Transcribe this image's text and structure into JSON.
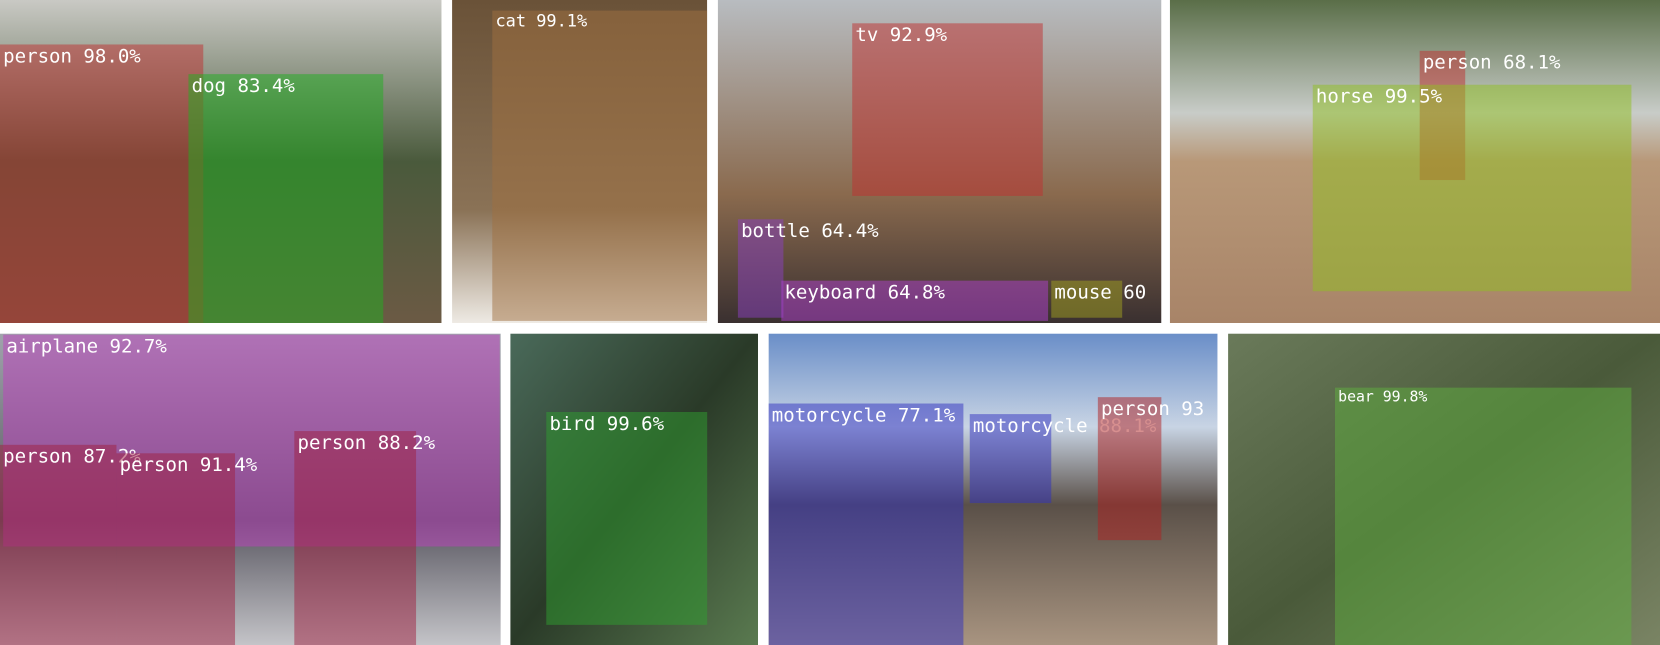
{
  "panels": [
    {
      "detections": [
        {
          "label": "person 98.0%"
        },
        {
          "label": "dog 83.4%"
        }
      ]
    },
    {
      "detections": [
        {
          "label": "cat 99.1%"
        }
      ]
    },
    {
      "detections": [
        {
          "label": "tv 92.9%"
        },
        {
          "label": "bottle 64.4%"
        },
        {
          "label": "keyboard 64.8%"
        },
        {
          "label": "mouse 60"
        }
      ]
    },
    {
      "detections": [
        {
          "label": "person 68.1%"
        },
        {
          "label": "horse 99.5%"
        }
      ]
    },
    {
      "detections": [
        {
          "label": "airplane 92.7%"
        },
        {
          "label": "person 87.2%"
        },
        {
          "label": "person 91.4%"
        },
        {
          "label": "person 88.2%"
        }
      ]
    },
    {
      "detections": [
        {
          "label": "bird 99.6%"
        }
      ]
    },
    {
      "detections": [
        {
          "label": "motorcycle 77.1%"
        },
        {
          "label": "motorcycle 88.1%"
        },
        {
          "label": "person 93"
        }
      ]
    },
    {
      "detections": [
        {
          "label": "bear 99.8%"
        }
      ]
    }
  ]
}
